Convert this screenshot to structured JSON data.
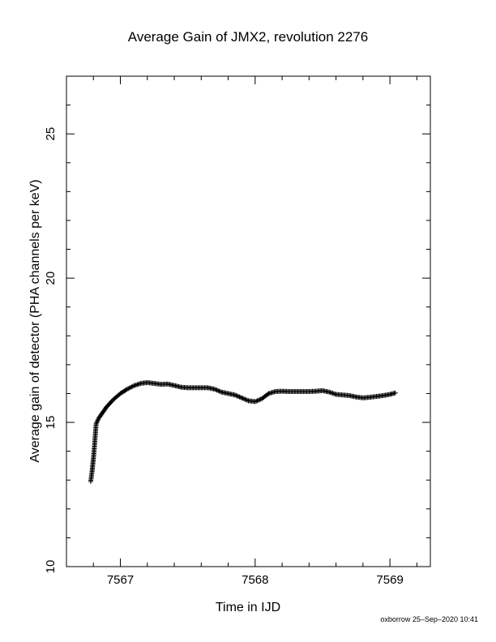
{
  "chart_data": {
    "type": "scatter",
    "title": "Average Gain of JMX2, revolution 2276",
    "xlabel": "Time in IJD",
    "ylabel": "Average gain of detector (PHA channels per keV)",
    "xlim": [
      7566.6,
      7569.3
    ],
    "ylim": [
      10,
      27
    ],
    "x_ticks": [
      7567,
      7568,
      7569
    ],
    "y_ticks": [
      10,
      15,
      20,
      25
    ],
    "marker": "plus",
    "color": "#000000",
    "series": [
      {
        "x": [
          7566.78,
          7566.79,
          7566.8,
          7566.81,
          7566.82,
          7566.84,
          7566.87,
          7566.9,
          7566.95,
          7567.0,
          7567.05,
          7567.1,
          7567.15,
          7567.2,
          7567.25,
          7567.3,
          7567.35,
          7567.4,
          7567.45,
          7567.5,
          7567.55,
          7567.6,
          7567.65,
          7567.7,
          7567.75,
          7567.8,
          7567.85,
          7567.9,
          7567.95,
          7568.0,
          7568.05,
          7568.1,
          7568.15,
          7568.2,
          7568.25,
          7568.3,
          7568.35,
          7568.4,
          7568.45,
          7568.5,
          7568.55,
          7568.6,
          7568.65,
          7568.7,
          7568.75,
          7568.8,
          7568.85,
          7568.9,
          7568.95,
          7569.0,
          7569.04
        ],
        "y": [
          12.95,
          13.3,
          13.75,
          14.3,
          14.95,
          15.15,
          15.35,
          15.55,
          15.8,
          16.0,
          16.15,
          16.27,
          16.35,
          16.38,
          16.35,
          16.32,
          16.33,
          16.28,
          16.22,
          16.2,
          16.2,
          16.2,
          16.2,
          16.15,
          16.05,
          16.0,
          15.95,
          15.85,
          15.75,
          15.72,
          15.82,
          16.0,
          16.07,
          16.08,
          16.07,
          16.07,
          16.07,
          16.07,
          16.08,
          16.1,
          16.05,
          15.97,
          15.95,
          15.93,
          15.88,
          15.85,
          15.87,
          15.9,
          15.93,
          15.97,
          16.02
        ]
      }
    ]
  },
  "footer": "oxborrow 25–Sep–2020 10:41"
}
